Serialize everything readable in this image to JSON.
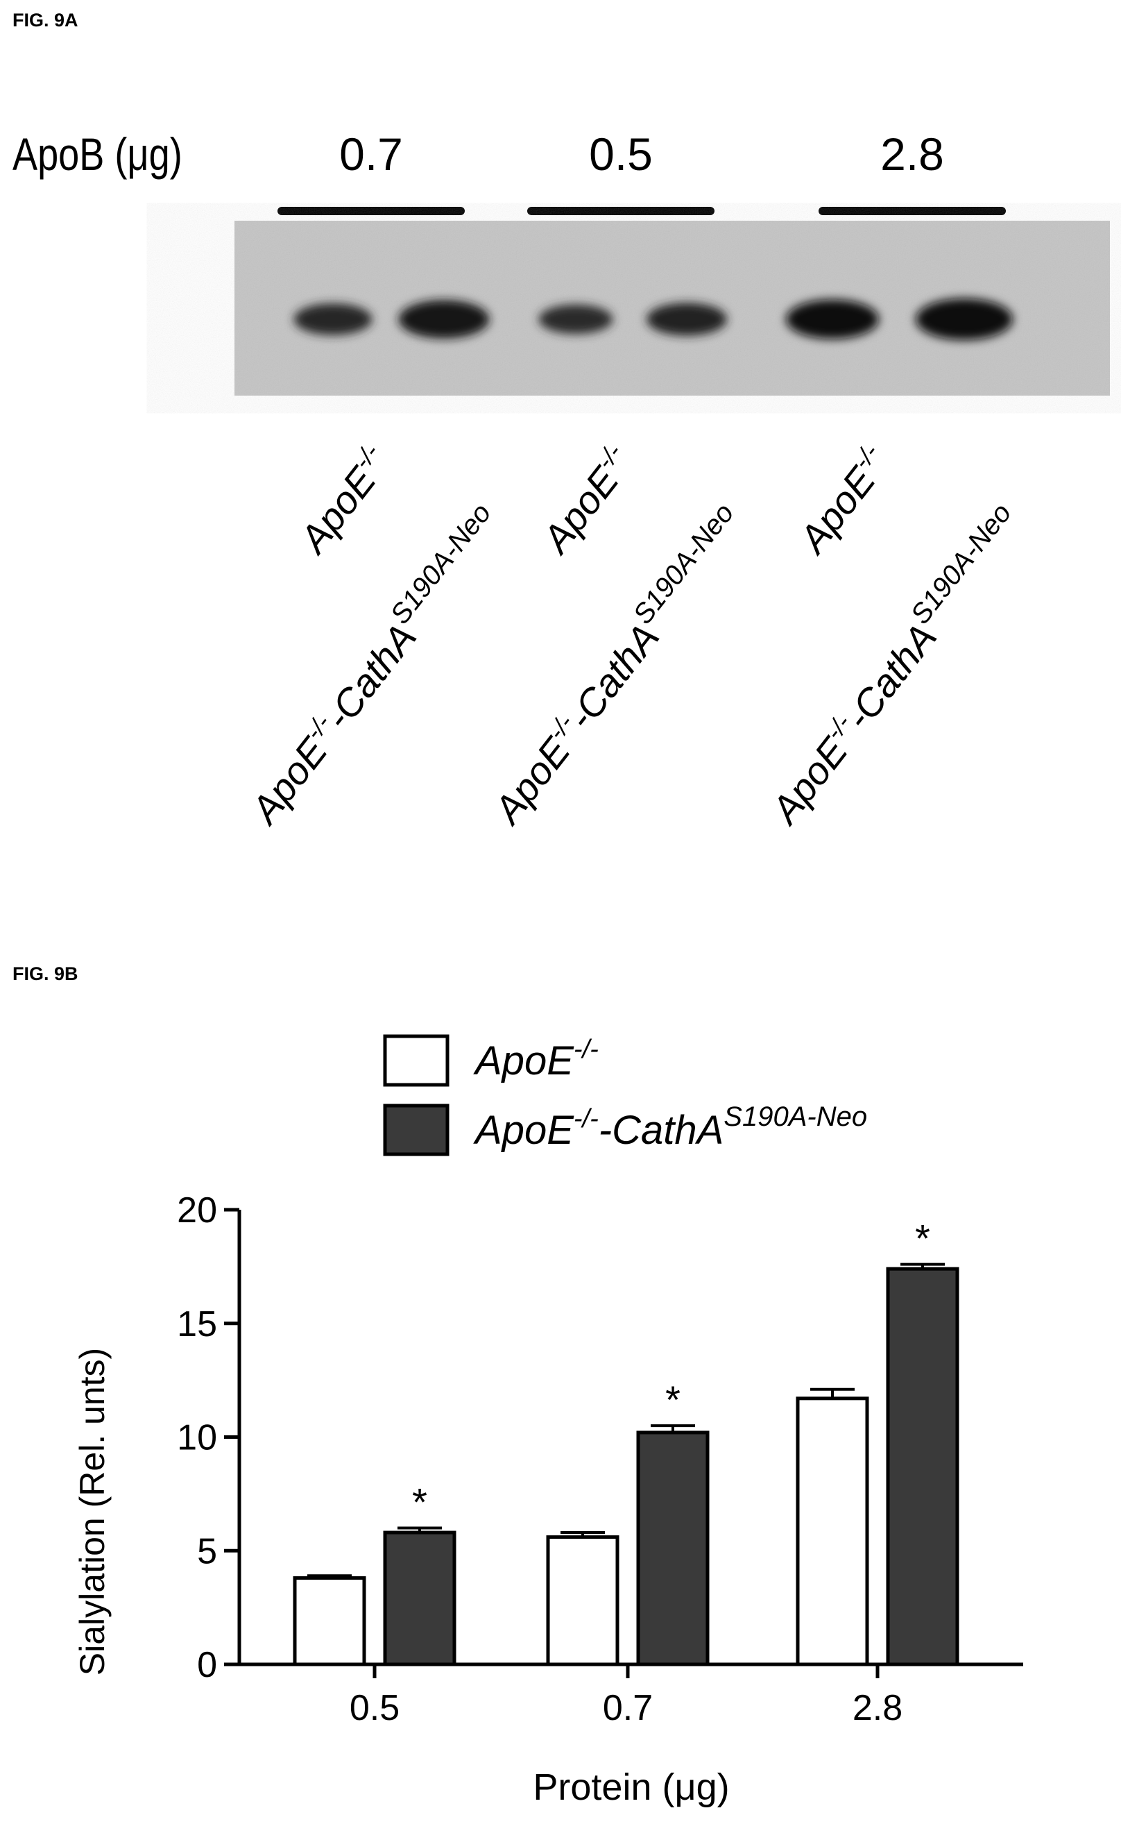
{
  "fig9a": {
    "label": "FIG. 9A",
    "row_label": "ApoB (μg)",
    "groups": [
      {
        "amount": "0.7",
        "lanes": [
          "ApoE-/-",
          "ApoE-/-CathAS190A-Neo"
        ],
        "intensity": [
          0.55,
          0.85
        ]
      },
      {
        "amount": "0.5",
        "lanes": [
          "ApoE-/-",
          "ApoE-/-CathAS190A-Neo"
        ],
        "intensity": [
          0.45,
          0.6
        ]
      },
      {
        "amount": "2.8",
        "lanes": [
          "ApoE-/-",
          "ApoE-/-CathAS190A-Neo"
        ],
        "intensity": [
          0.9,
          1.0
        ]
      }
    ],
    "lane_text": {
      "wt_base": "ApoE",
      "wt_sup": "-/-",
      "mut_base1": "ApoE",
      "mut_sup1": "-/-",
      "mut_base2": "-CathA",
      "mut_sup2": "S190A-Neo"
    }
  },
  "fig9b": {
    "label": "FIG. 9B",
    "legend": [
      {
        "base": "ApoE",
        "sup": "-/-",
        "extra": "",
        "extra_sup": "",
        "color": "#ffffff"
      },
      {
        "base": "ApoE",
        "sup": "-/-",
        "extra": "CathA",
        "extra_sup": "S190A-Neo",
        "color": "#3a3a3a"
      }
    ]
  },
  "chart_data": {
    "type": "bar",
    "title": "",
    "xlabel": "Protein (μg)",
    "ylabel": "Sialylation (Rel. unts)",
    "categories": [
      "0.5",
      "0.7",
      "2.8"
    ],
    "ylim": [
      0,
      20
    ],
    "yticks": [
      0,
      5,
      10,
      15,
      20
    ],
    "series": [
      {
        "name": "ApoE-/-",
        "values": [
          3.8,
          5.6,
          11.7
        ],
        "errors": [
          0.1,
          0.2,
          0.4
        ],
        "color": "#ffffff"
      },
      {
        "name": "ApoE-/-CathAS190A-Neo",
        "values": [
          5.8,
          10.2,
          17.4
        ],
        "errors": [
          0.2,
          0.3,
          0.2
        ],
        "color": "#3a3a3a"
      }
    ],
    "annotations": [
      {
        "text": "*",
        "category": "0.5",
        "series": 1
      },
      {
        "text": "*",
        "category": "0.7",
        "series": 1
      },
      {
        "text": "*",
        "category": "2.8",
        "series": 1
      }
    ],
    "legend_position": "top-center",
    "grid": false
  }
}
